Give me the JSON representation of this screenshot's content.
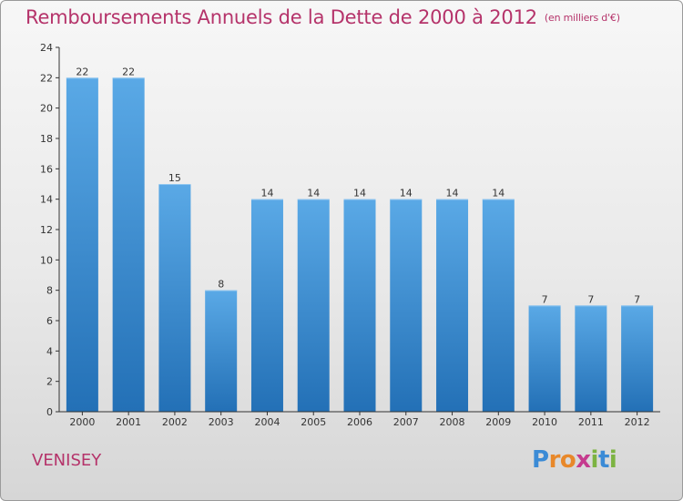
{
  "title": "Remboursements Annuels de la Dette de 2000 à 2012",
  "unit_note": "(en milliers d'€)",
  "commune": "VENISEY",
  "logo": {
    "text": "Proxiti",
    "letters": [
      "P",
      "r",
      "o",
      "x",
      "i",
      "t",
      "i"
    ],
    "letter_colors": [
      "#3b8bd6",
      "#e8882a",
      "#e8882a",
      "#c53b8e",
      "#7cb342",
      "#3b8bd6",
      "#7cb342"
    ]
  },
  "colors": {
    "bar_light": "#5aa9e6",
    "bar_dark": "#2370b6",
    "title": "#b5336a",
    "axis": "#333333"
  },
  "chart_data": {
    "type": "bar",
    "title": "Remboursements Annuels de la Dette de 2000 à 2012",
    "xlabel": "",
    "ylabel": "",
    "categories": [
      "2000",
      "2001",
      "2002",
      "2003",
      "2004",
      "2005",
      "2006",
      "2007",
      "2008",
      "2009",
      "2010",
      "2011",
      "2012"
    ],
    "values": [
      22,
      22,
      15,
      8,
      14,
      14,
      14,
      14,
      14,
      14,
      7,
      7,
      7
    ],
    "data_labels": [
      "22",
      "22",
      "15",
      "8",
      "14",
      "14",
      "14",
      "14",
      "14",
      "14",
      "7",
      "7",
      "7"
    ],
    "ylim": [
      0,
      24
    ],
    "yticks": [
      0,
      2,
      4,
      6,
      8,
      10,
      12,
      14,
      16,
      18,
      20,
      22,
      24
    ],
    "grid": false,
    "legend": "none"
  }
}
